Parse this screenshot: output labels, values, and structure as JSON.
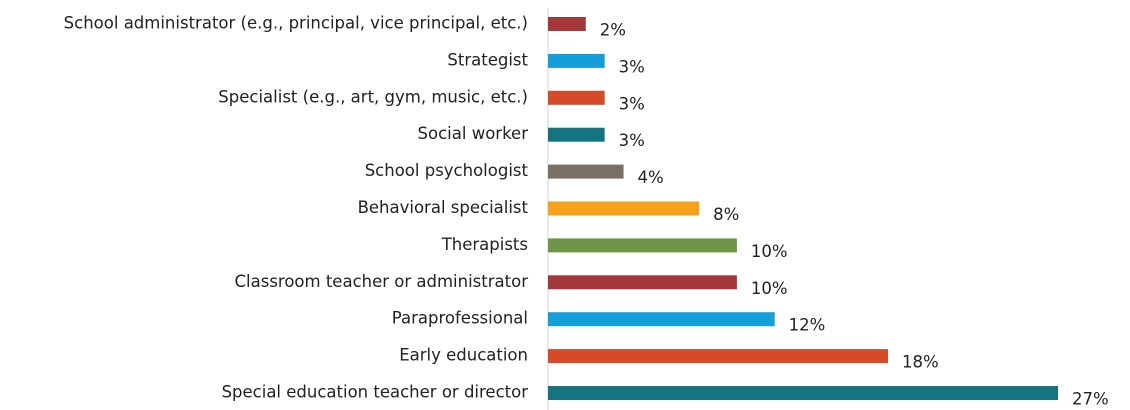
{
  "chart_data": {
    "type": "hbar",
    "categories": [
      "School administrator (e.g., principal, vice principal, etc.)",
      "Strategist",
      "Specialist (e.g., art, gym, music, etc.)",
      "Social worker",
      "School psychologist",
      "Behavioral specialist",
      "Therapists",
      "Classroom teacher or administrator",
      "Paraprofessional",
      "Early education",
      "Special education teacher or director"
    ],
    "values": [
      2,
      3,
      3,
      3,
      4,
      8,
      10,
      10,
      12,
      18,
      27
    ],
    "value_labels": [
      "2%",
      "3%",
      "3%",
      "3%",
      "4%",
      "8%",
      "10%",
      "10%",
      "12%",
      "18%",
      "27%"
    ],
    "colors": [
      "#a4373a",
      "#159fd9",
      "#d64a27",
      "#147580",
      "#7b7064",
      "#f7a11a",
      "#6f9548",
      "#a4373a",
      "#159fd9",
      "#d64a27",
      "#147580"
    ]
  }
}
